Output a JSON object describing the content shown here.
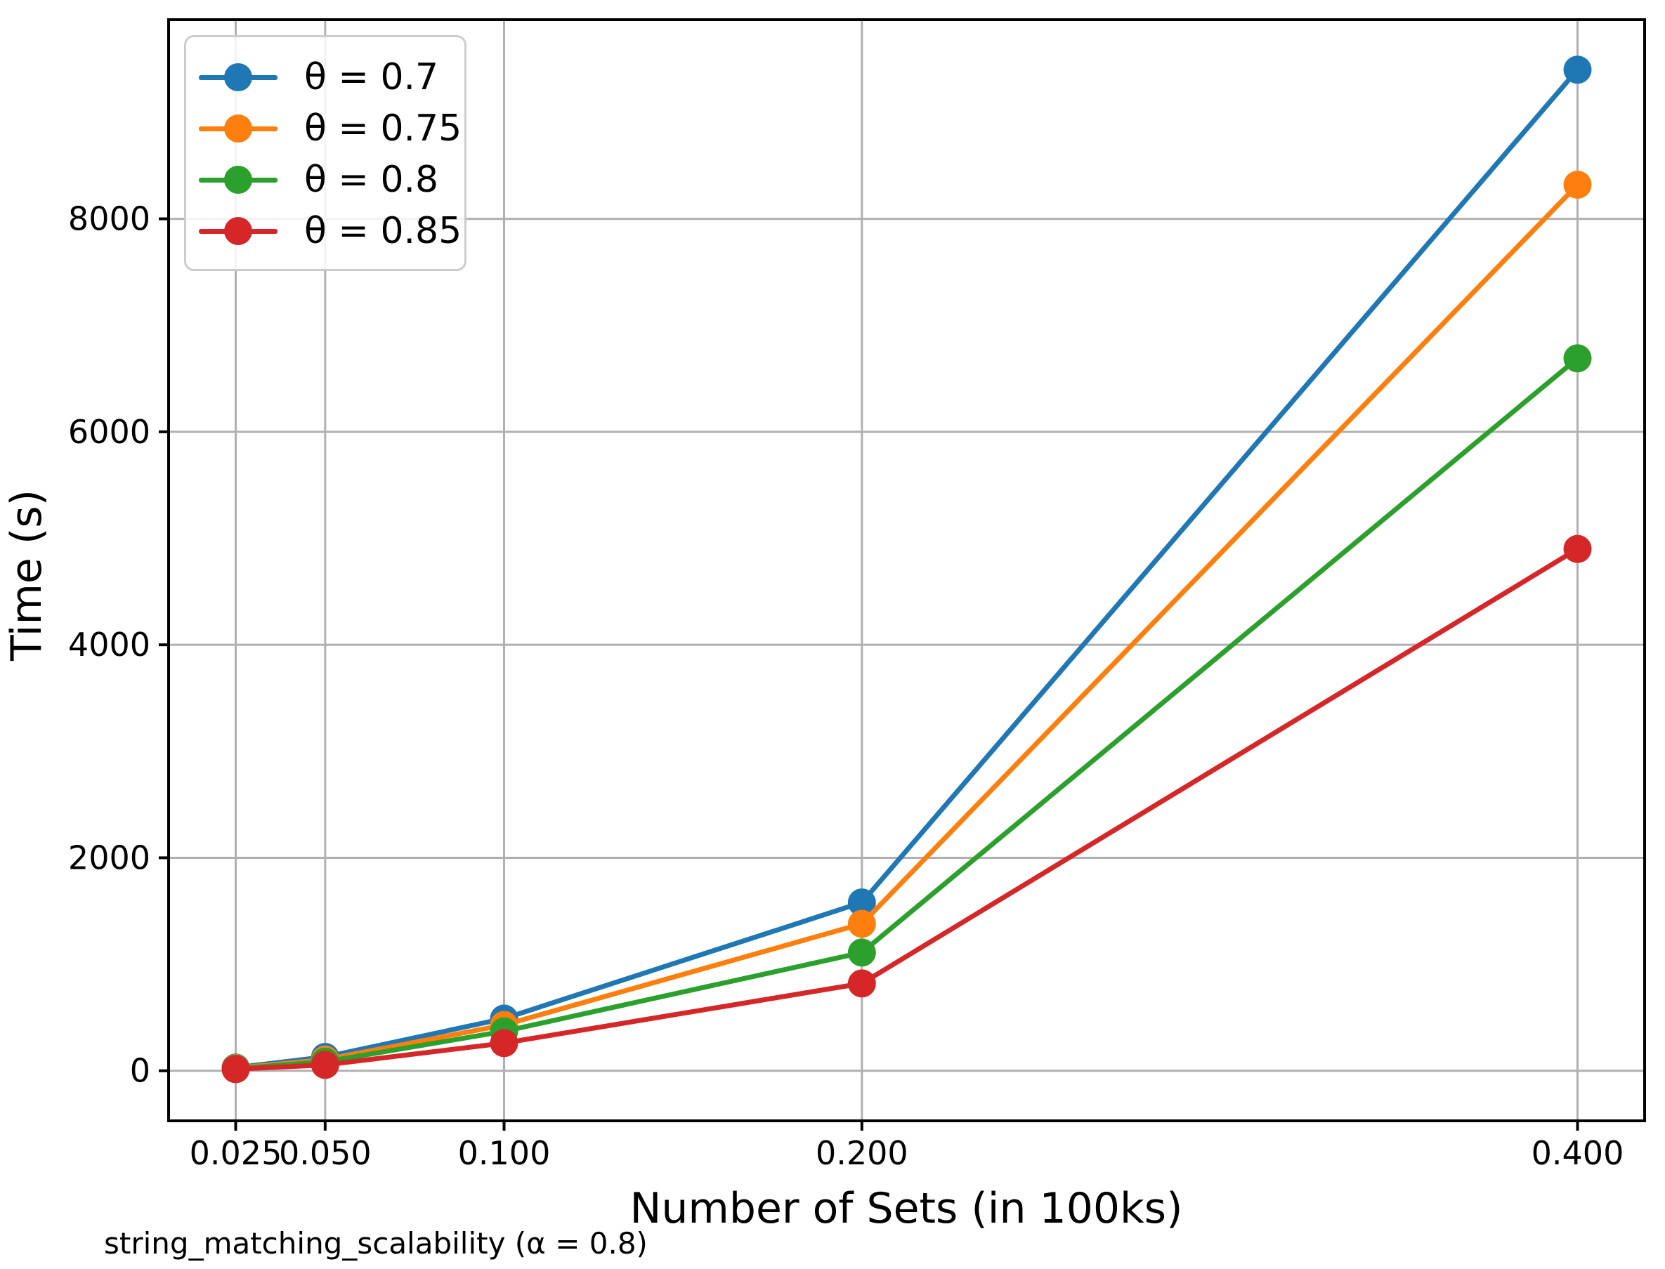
{
  "figure": {
    "caption": "string_matching_scalability (α = 0.8)"
  },
  "chart_data": {
    "type": "line",
    "title": "",
    "xlabel": "Number of Sets (in 100ks)",
    "ylabel": "Time (s)",
    "grid": true,
    "legend_position": "upper-left",
    "x": [
      0.025,
      0.05,
      0.1,
      0.2,
      0.4
    ],
    "xlim": [
      0.00625,
      0.41875
    ],
    "ylim": [
      -470,
      9870
    ],
    "xticks": {
      "values": [
        0.025,
        0.05,
        0.1,
        0.2,
        0.4
      ],
      "labels": [
        "0.025",
        "0.050",
        "0.100",
        "0.200",
        "0.400"
      ]
    },
    "yticks": {
      "values": [
        0,
        2000,
        4000,
        6000,
        8000
      ],
      "labels": [
        "0",
        "2000",
        "4000",
        "6000",
        "8000"
      ]
    },
    "series": [
      {
        "name": "θ = 0.7",
        "color": "#1f77b4",
        "values": [
          30,
          130,
          490,
          1580,
          9400
        ]
      },
      {
        "name": "θ = 0.75",
        "color": "#ff7f0e",
        "values": [
          25,
          105,
          430,
          1380,
          8320
        ]
      },
      {
        "name": "θ = 0.8",
        "color": "#2ca02c",
        "values": [
          20,
          85,
          370,
          1110,
          6690
        ]
      },
      {
        "name": "θ = 0.85",
        "color": "#d62728",
        "values": [
          15,
          55,
          260,
          820,
          4900
        ]
      }
    ],
    "style": {
      "grid_color": "#b0b0b0",
      "spine_color": "#000000",
      "line_width": 7,
      "marker_radius": 20
    }
  }
}
